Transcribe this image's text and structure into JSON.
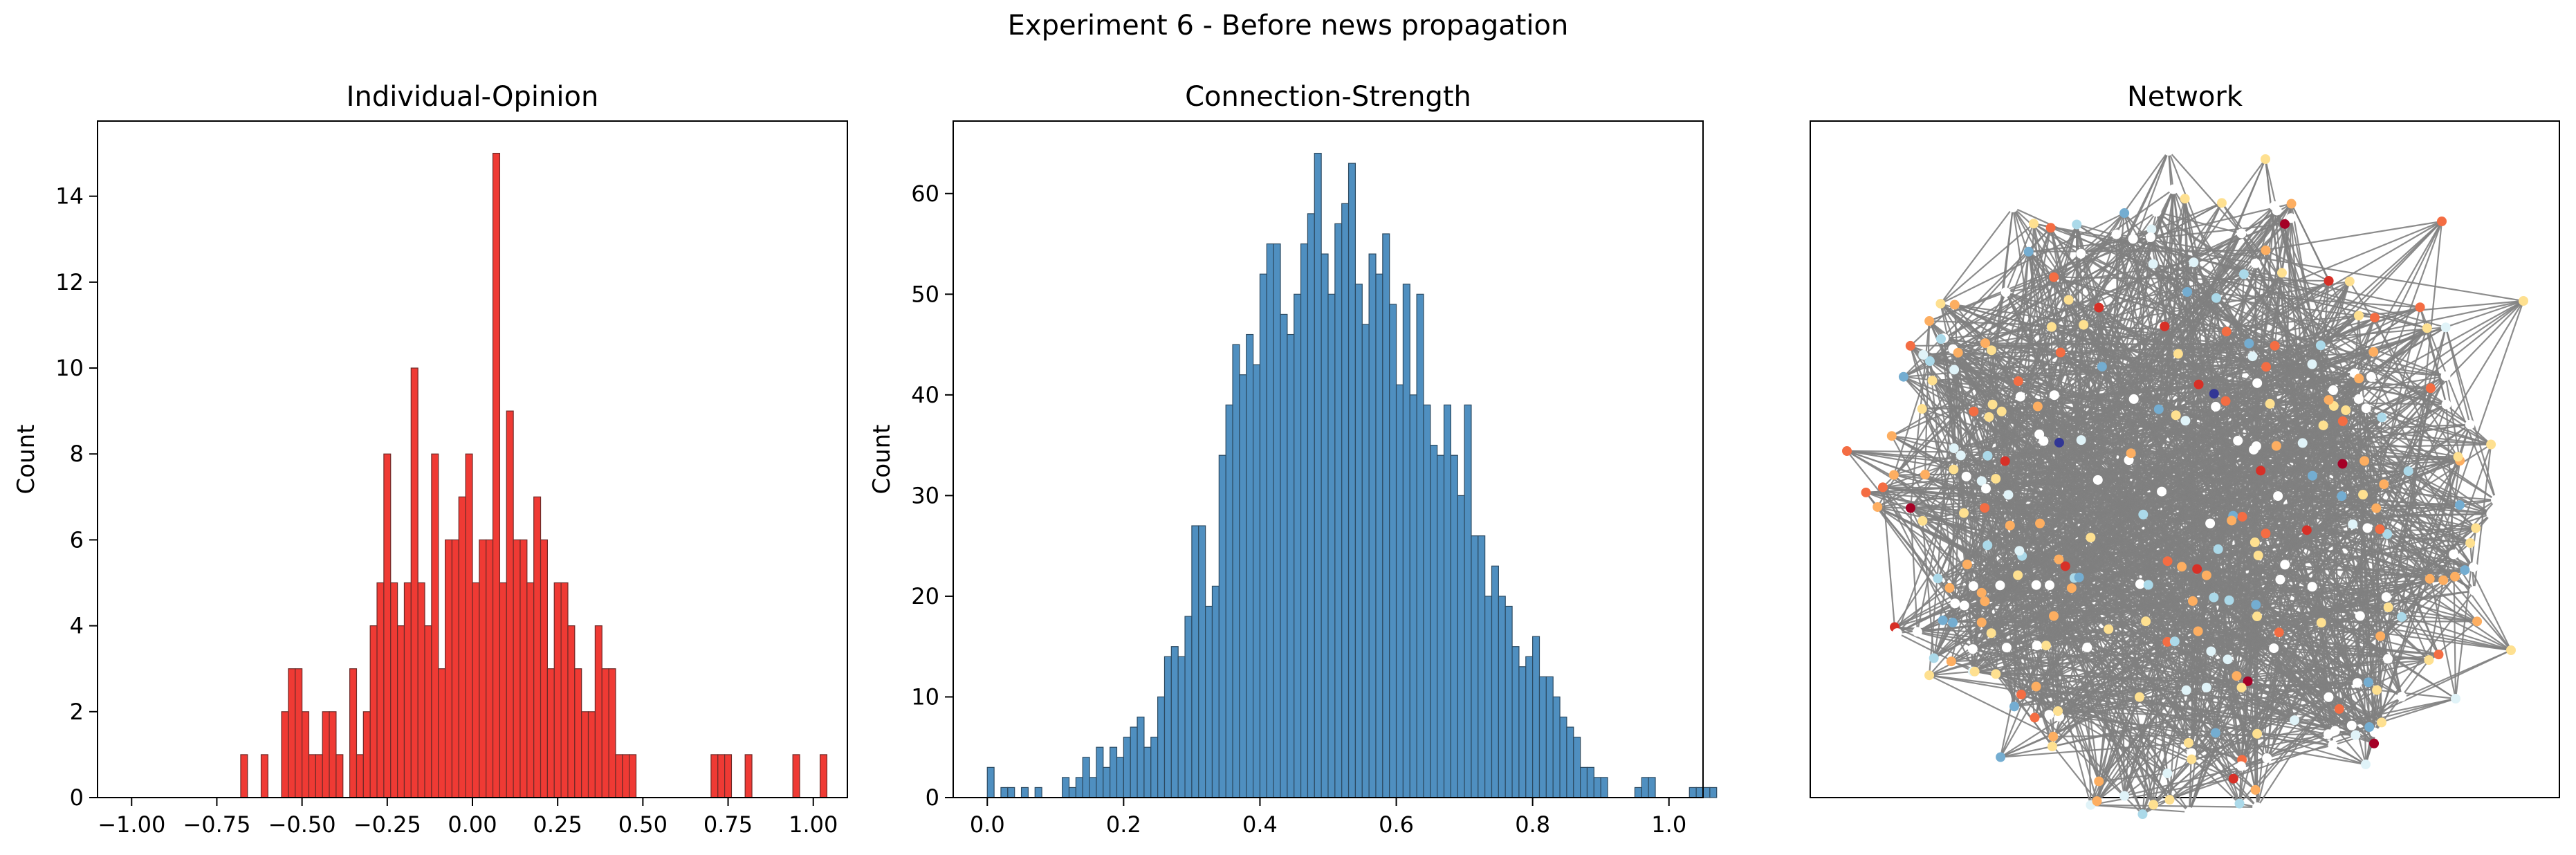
{
  "figure": {
    "suptitle": "Experiment 6 - Before news propagation"
  },
  "chart_data": [
    {
      "type": "bar",
      "title": "Individual-Opinion",
      "xlabel": "",
      "ylabel": "Count",
      "xlim": [
        -1.1,
        1.1
      ],
      "ylim": [
        0,
        15.75
      ],
      "xticks": [
        -1.0,
        -0.75,
        -0.5,
        -0.25,
        0.0,
        0.25,
        0.5,
        0.75,
        1.0
      ],
      "xtick_labels": [
        "−1.00",
        "−0.75",
        "−0.50",
        "−0.25",
        "0.00",
        "0.25",
        "0.50",
        "0.75",
        "1.00"
      ],
      "yticks": [
        0,
        2,
        4,
        6,
        8,
        10,
        12,
        14
      ],
      "ytick_labels": [
        "0",
        "2",
        "4",
        "6",
        "8",
        "10",
        "12",
        "14"
      ],
      "bin_edges_start": -0.68,
      "bin_width": 0.02,
      "values": [
        1,
        0,
        0,
        1,
        0,
        0,
        2,
        3,
        3,
        2,
        1,
        1,
        2,
        2,
        1,
        0,
        3,
        1,
        2,
        4,
        5,
        8,
        5,
        4,
        5,
        10,
        5,
        4,
        8,
        3,
        6,
        6,
        7,
        8,
        5,
        6,
        6,
        15,
        5,
        9,
        6,
        6,
        5,
        7,
        6,
        3,
        5,
        5,
        4,
        3,
        2,
        2,
        4,
        3,
        3,
        1,
        1,
        1,
        0,
        0,
        0,
        0,
        0,
        0,
        0,
        0,
        0,
        0,
        0,
        1,
        1,
        1,
        0,
        0,
        1,
        0,
        0,
        0,
        0,
        0,
        0,
        1,
        0,
        0,
        0,
        1
      ],
      "bar_color": "#ef3a34",
      "edge_color": "#6e2a28",
      "grid": false
    },
    {
      "type": "bar",
      "title": "Connection-Strength",
      "xlabel": "",
      "ylabel": "Count",
      "xlim": [
        -0.05,
        1.05
      ],
      "ylim": [
        0,
        67.2
      ],
      "xticks": [
        0.0,
        0.2,
        0.4,
        0.6,
        0.8,
        1.0
      ],
      "xtick_labels": [
        "0.0",
        "0.2",
        "0.4",
        "0.6",
        "0.8",
        "1.0"
      ],
      "yticks": [
        0,
        10,
        20,
        30,
        40,
        50,
        60
      ],
      "ytick_labels": [
        "0",
        "10",
        "20",
        "30",
        "40",
        "50",
        "60"
      ],
      "bin_edges_start": 0.0,
      "bin_width": 0.01,
      "values": [
        3,
        0,
        1,
        1,
        0,
        1,
        0,
        1,
        0,
        0,
        0,
        2,
        1,
        2,
        4,
        2,
        5,
        3,
        5,
        4,
        6,
        7,
        8,
        5,
        6,
        10,
        14,
        15,
        14,
        18,
        27,
        27,
        19,
        21,
        34,
        39,
        45,
        42,
        46,
        43,
        52,
        55,
        55,
        48,
        46,
        50,
        55,
        58,
        64,
        54,
        50,
        57,
        59,
        63,
        51,
        47,
        54,
        52,
        56,
        49,
        41,
        51,
        40,
        50,
        39,
        35,
        34,
        39,
        34,
        30,
        39,
        26,
        26,
        20,
        23,
        20,
        19,
        15,
        13,
        14,
        16,
        12,
        12,
        10,
        8,
        7,
        6,
        3,
        3,
        2,
        2,
        0,
        0,
        0,
        0,
        1,
        2,
        2,
        0,
        0,
        0,
        0,
        0,
        1,
        1,
        1,
        1
      ],
      "bar_color": "#4f8fc0",
      "edge_color": "#2c4a61",
      "grid": false
    },
    {
      "type": "network",
      "title": "Network",
      "node_color_scale": [
        "#313695",
        "#74add1",
        "#abd9e9",
        "#e0f3f8",
        "#ffffff",
        "#fee090",
        "#fdae61",
        "#f46d43",
        "#d73027",
        "#a50026"
      ],
      "edge_color": "#808080",
      "axes_visible": false
    }
  ]
}
